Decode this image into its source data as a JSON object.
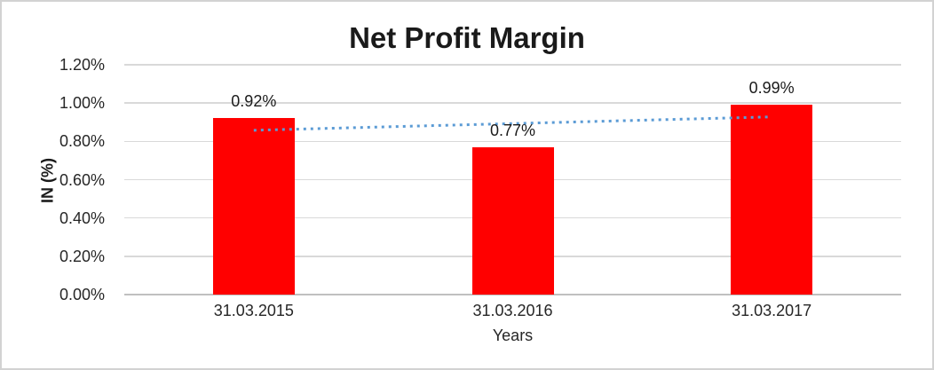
{
  "window": {
    "background_color": "#FFFFFF",
    "border_color": "#D2D2D2"
  },
  "chart_data": {
    "type": "bar",
    "title": "Net Profit Margin",
    "categories": [
      "31.03.2015",
      "31.03.2016",
      "31.03.2017"
    ],
    "values": [
      0.92,
      0.77,
      0.99
    ],
    "data_labels": [
      "0.92%",
      "0.77%",
      "0.99%"
    ],
    "xlabel": "Years",
    "ylabel": "IN (%)",
    "ylim": [
      0,
      1.2
    ],
    "ytick_labels": [
      "0.00%",
      "0.20%",
      "0.40%",
      "0.60%",
      "0.80%",
      "1.00%",
      "1.20%"
    ],
    "grid": true,
    "legend": false,
    "bar_color": "#FF0000",
    "gridline_color": "#D9D9D9",
    "trendline": {
      "type": "linear",
      "style": "dotted",
      "color": "#5B9BD5",
      "start_value": 0.858,
      "end_value": 0.928
    }
  }
}
